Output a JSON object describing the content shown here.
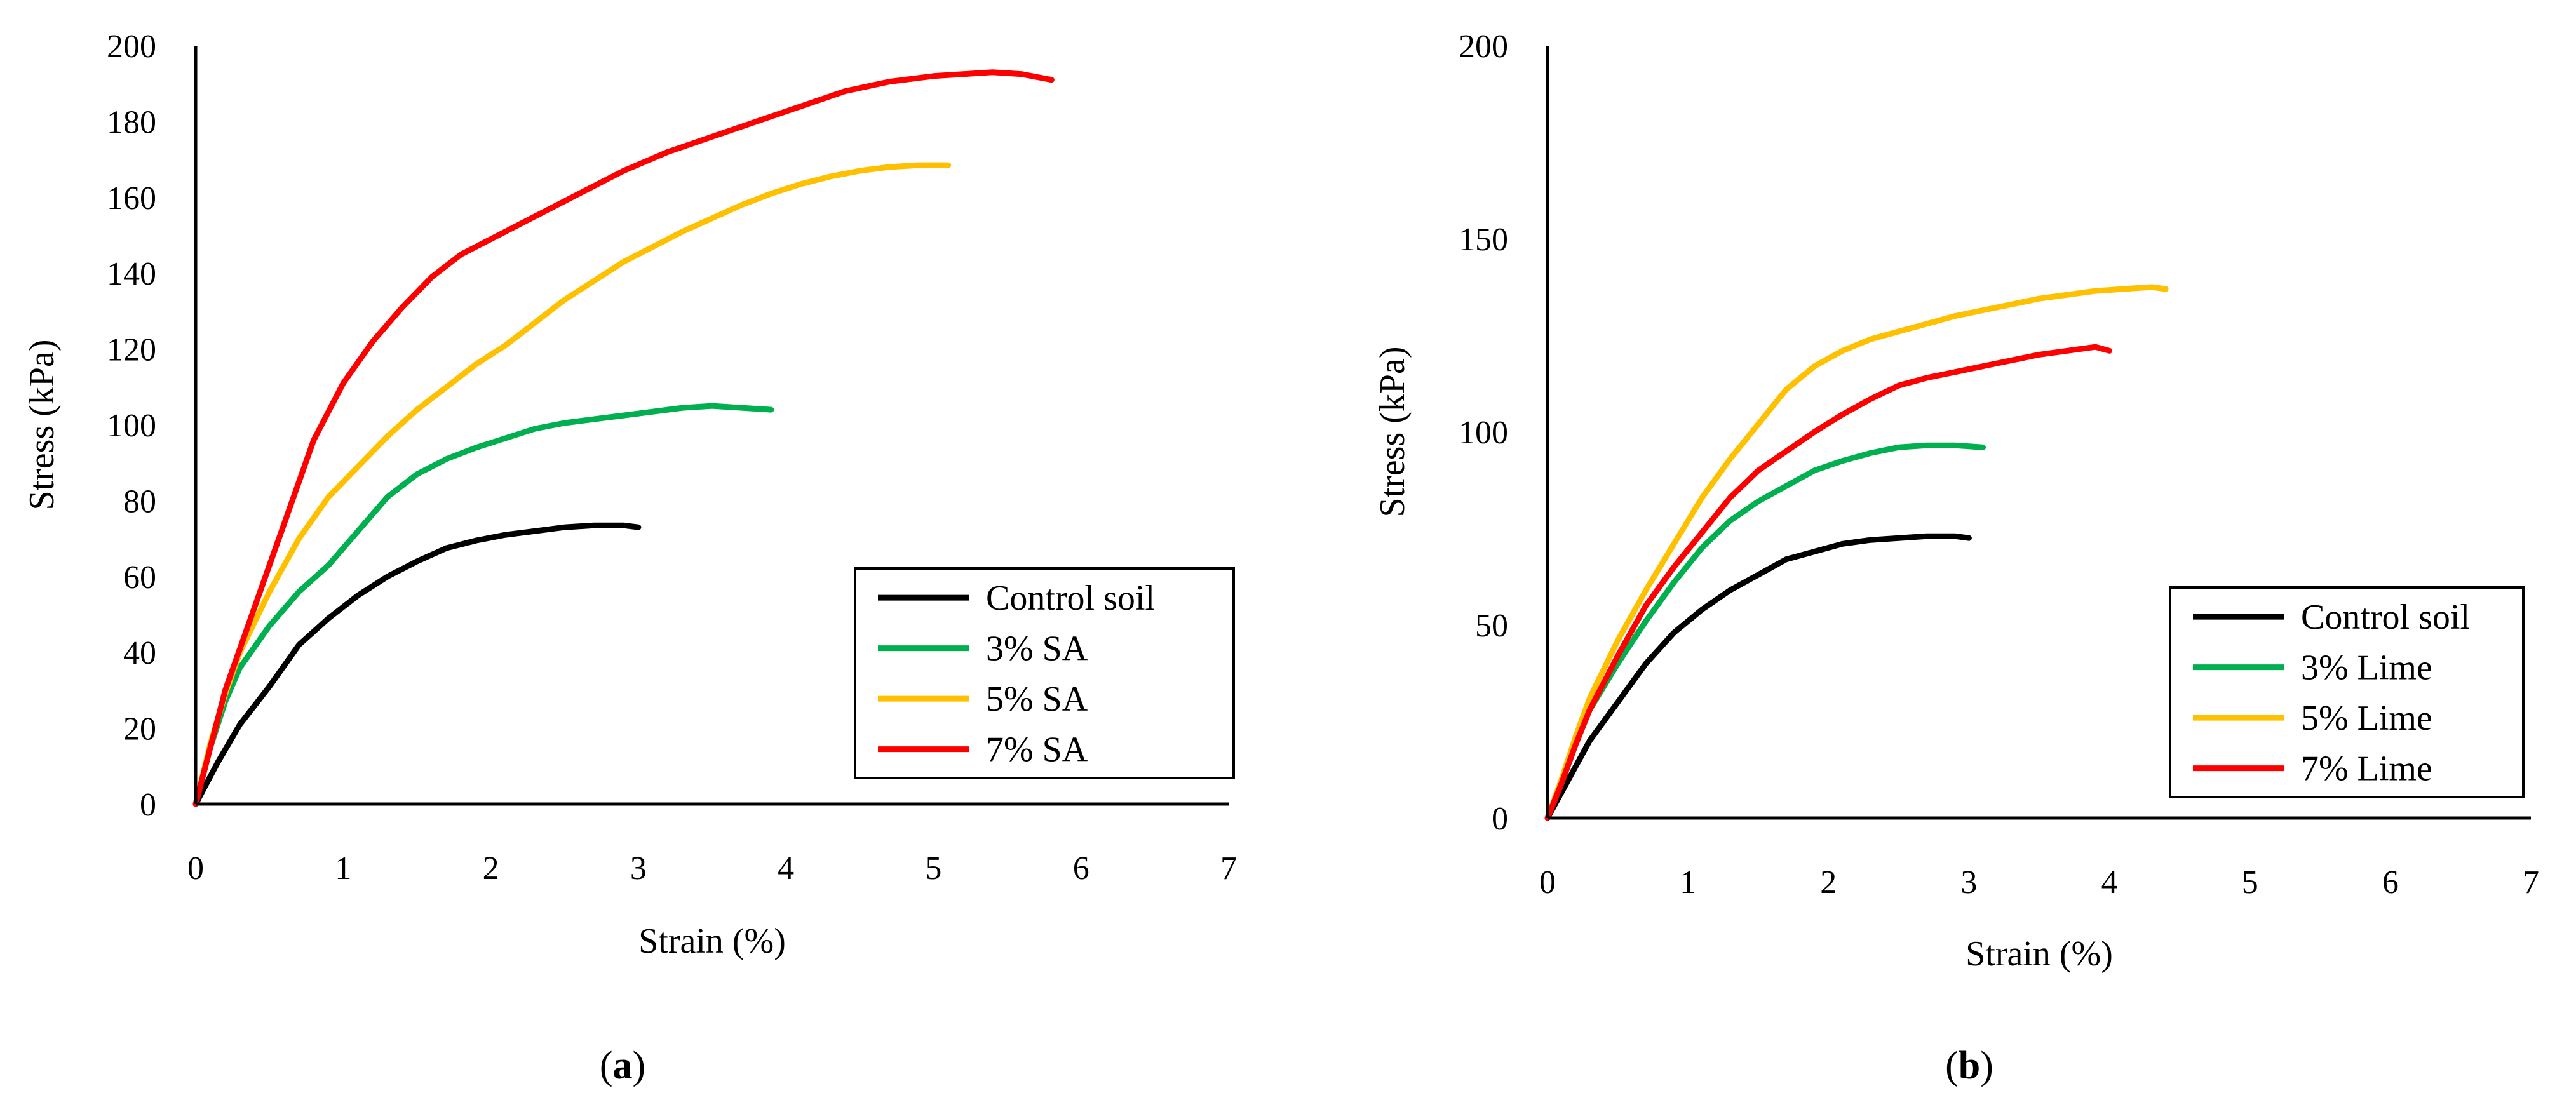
{
  "chart_data": [
    {
      "type": "line",
      "panel_label": {
        "open": "(",
        "letter": "a",
        "close": ")"
      },
      "title": "",
      "xlabel": "Strain (%)",
      "ylabel": "Stress (kPa)",
      "xlim": [
        0,
        7
      ],
      "ylim": [
        0,
        200
      ],
      "xticks": [
        0,
        1,
        2,
        3,
        4,
        5,
        6,
        7
      ],
      "yticks": [
        0,
        20,
        40,
        60,
        80,
        100,
        120,
        140,
        160,
        180,
        200
      ],
      "grid": false,
      "legend_position": "bottom-right",
      "series": [
        {
          "name": "Control soil",
          "color": "#000000",
          "x": [
            0,
            0.15,
            0.3,
            0.5,
            0.7,
            0.9,
            1.1,
            1.3,
            1.5,
            1.7,
            1.9,
            2.1,
            2.3,
            2.5,
            2.7,
            2.9,
            3.0
          ],
          "y": [
            0,
            11,
            21,
            31,
            42,
            49,
            55,
            60,
            64,
            67.5,
            69.5,
            71,
            72,
            73,
            73.5,
            73.5,
            73
          ]
        },
        {
          "name": "3% SA",
          "color": "#00b050",
          "x": [
            0,
            0.1,
            0.2,
            0.3,
            0.5,
            0.7,
            0.9,
            1.1,
            1.3,
            1.5,
            1.7,
            1.9,
            2.1,
            2.3,
            2.5,
            2.7,
            2.9,
            3.1,
            3.3,
            3.5,
            3.7,
            3.9
          ],
          "y": [
            0,
            15,
            27,
            36,
            47,
            56,
            63,
            72,
            81,
            87,
            91,
            94,
            96.5,
            99,
            100.5,
            101.5,
            102.5,
            103.5,
            104.5,
            105,
            104.5,
            104
          ]
        },
        {
          "name": "5% SA",
          "color": "#ffc000",
          "x": [
            0,
            0.1,
            0.2,
            0.3,
            0.5,
            0.7,
            0.9,
            1.1,
            1.3,
            1.5,
            1.7,
            1.9,
            2.1,
            2.3,
            2.5,
            2.7,
            2.9,
            3.1,
            3.3,
            3.5,
            3.7,
            3.9,
            4.1,
            4.3,
            4.5,
            4.7,
            4.9,
            5.1
          ],
          "y": [
            0,
            16,
            29,
            40,
            56,
            70,
            81,
            89,
            97,
            104,
            110,
            116,
            121,
            127,
            133,
            138,
            143,
            147,
            151,
            154.5,
            158,
            161,
            163.5,
            165.5,
            167,
            168,
            168.5,
            168.5
          ]
        },
        {
          "name": "7% SA",
          "color": "#ff0000",
          "x": [
            0,
            0.1,
            0.2,
            0.4,
            0.6,
            0.8,
            1.0,
            1.2,
            1.4,
            1.6,
            1.8,
            2.0,
            2.3,
            2.6,
            2.9,
            3.2,
            3.5,
            3.8,
            4.1,
            4.4,
            4.7,
            5.0,
            5.2,
            5.4,
            5.6,
            5.8
          ],
          "y": [
            0,
            15,
            30,
            52,
            74,
            96,
            111,
            122,
            131,
            139,
            145,
            149,
            155,
            161,
            167,
            172,
            176,
            180,
            184,
            188,
            190.5,
            192,
            192.5,
            193,
            192.5,
            191
          ]
        }
      ]
    },
    {
      "type": "line",
      "panel_label": {
        "open": "(",
        "letter": "b",
        "close": ")"
      },
      "title": "",
      "xlabel": "Strain (%)",
      "ylabel": "Stress (kPa)",
      "xlim": [
        0,
        7
      ],
      "ylim": [
        0,
        200
      ],
      "xticks": [
        0,
        1,
        2,
        3,
        4,
        5,
        6,
        7
      ],
      "yticks": [
        0,
        50,
        100,
        150,
        200
      ],
      "grid": false,
      "legend_position": "bottom-right",
      "series": [
        {
          "name": "Control soil",
          "color": "#000000",
          "x": [
            0,
            0.15,
            0.3,
            0.5,
            0.7,
            0.9,
            1.1,
            1.3,
            1.5,
            1.7,
            1.9,
            2.1,
            2.3,
            2.5,
            2.7,
            2.9,
            3.0
          ],
          "y": [
            0,
            10,
            20,
            30,
            40,
            48,
            54,
            59,
            63,
            67,
            69,
            71,
            72,
            72.5,
            73,
            73,
            72.5
          ]
        },
        {
          "name": "3% Lime",
          "color": "#00b050",
          "x": [
            0,
            0.1,
            0.2,
            0.3,
            0.5,
            0.7,
            0.9,
            1.1,
            1.3,
            1.5,
            1.7,
            1.9,
            2.1,
            2.3,
            2.5,
            2.7,
            2.9,
            3.1
          ],
          "y": [
            0,
            9,
            19,
            28,
            40,
            51,
            61,
            70,
            77,
            82,
            86,
            90,
            92.5,
            94.5,
            96,
            96.5,
            96.5,
            96
          ]
        },
        {
          "name": "5% Lime",
          "color": "#ffc000",
          "x": [
            0,
            0.1,
            0.2,
            0.3,
            0.5,
            0.7,
            0.9,
            1.1,
            1.3,
            1.5,
            1.7,
            1.9,
            2.1,
            2.3,
            2.5,
            2.7,
            2.9,
            3.1,
            3.3,
            3.5,
            3.7,
            3.9,
            4.1,
            4.3,
            4.4
          ],
          "y": [
            0,
            10,
            21,
            31,
            46,
            59,
            71,
            83,
            93,
            102,
            111,
            117,
            121,
            124,
            126,
            128,
            130,
            131.5,
            133,
            134.5,
            135.5,
            136.5,
            137,
            137.5,
            137
          ]
        },
        {
          "name": "7% Lime",
          "color": "#ff0000",
          "x": [
            0,
            0.1,
            0.2,
            0.3,
            0.5,
            0.7,
            0.9,
            1.1,
            1.3,
            1.5,
            1.7,
            1.9,
            2.1,
            2.3,
            2.5,
            2.7,
            2.9,
            3.1,
            3.3,
            3.5,
            3.7,
            3.9,
            4.0
          ],
          "y": [
            0,
            9,
            19,
            28,
            42,
            55,
            65,
            74,
            83,
            90,
            95,
            100,
            104.5,
            108.5,
            112,
            114,
            115.5,
            117,
            118.5,
            120,
            121,
            122,
            121
          ]
        }
      ]
    }
  ]
}
